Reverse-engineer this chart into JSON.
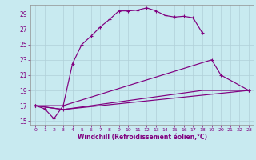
{
  "title": "",
  "xlabel": "Windchill (Refroidissement éolien,°C)",
  "bg_color": "#c8eaf0",
  "grid_color": "#b0d0d8",
  "line_color": "#800080",
  "xlim": [
    -0.5,
    23.5
  ],
  "ylim": [
    14.5,
    30.2
  ],
  "xticks": [
    0,
    1,
    2,
    3,
    4,
    5,
    6,
    7,
    8,
    9,
    10,
    11,
    12,
    13,
    14,
    15,
    16,
    17,
    18,
    19,
    20,
    21,
    22,
    23
  ],
  "yticks": [
    15,
    17,
    19,
    21,
    23,
    25,
    27,
    29
  ],
  "line1_x": [
    0,
    1,
    2,
    3,
    4,
    5,
    6,
    7,
    8,
    9,
    10,
    11,
    12,
    13,
    14,
    15,
    16,
    17,
    18
  ],
  "line1_y": [
    17.0,
    16.6,
    15.3,
    17.0,
    22.5,
    25.0,
    26.1,
    27.3,
    28.3,
    29.4,
    29.4,
    29.5,
    29.8,
    29.4,
    28.8,
    28.6,
    28.7,
    28.5,
    26.5
  ],
  "line2_x": [
    0,
    3,
    19,
    20,
    23
  ],
  "line2_y": [
    17.0,
    17.0,
    23.0,
    21.0,
    19.0
  ],
  "line3_x": [
    0,
    3,
    23
  ],
  "line3_y": [
    17.0,
    16.5,
    19.0
  ],
  "line4_x": [
    0,
    3,
    18,
    23
  ],
  "line4_y": [
    17.0,
    16.5,
    19.0,
    19.0
  ]
}
